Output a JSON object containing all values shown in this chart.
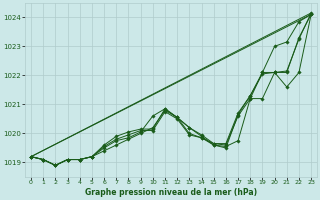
{
  "title": "Graphe pression niveau de la mer (hPa)",
  "background_color": "#cce8e8",
  "grid_color": "#b0cccc",
  "line_color": "#1a5c1a",
  "x_ticks": [
    0,
    1,
    2,
    3,
    4,
    5,
    6,
    7,
    8,
    9,
    10,
    11,
    12,
    13,
    14,
    15,
    16,
    17,
    18,
    19,
    20,
    21,
    22,
    23
  ],
  "ylim": [
    1018.5,
    1024.5
  ],
  "y_ticks": [
    1019,
    1020,
    1021,
    1022,
    1023,
    1024
  ],
  "series": [
    [
      1019.2,
      1019.1,
      1018.9,
      1019.1,
      1019.1,
      1019.2,
      1019.4,
      1019.6,
      1019.8,
      1020.0,
      1020.2,
      1020.8,
      1020.55,
      1020.2,
      1019.9,
      1019.6,
      1019.55,
      1019.75,
      1021.2,
      1021.2,
      1022.1,
      1021.6,
      1022.1,
      1024.1
    ],
    [
      1019.2,
      1019.1,
      1018.9,
      1019.1,
      1019.1,
      1019.2,
      1019.5,
      1019.75,
      1019.85,
      1020.05,
      1020.6,
      1020.85,
      1020.55,
      1020.2,
      1019.95,
      1019.65,
      1019.6,
      1020.6,
      1021.2,
      1022.1,
      1023.0,
      1023.15,
      1023.85,
      1024.1
    ],
    [
      1019.2,
      1019.1,
      1018.9,
      1019.1,
      1019.1,
      1019.2,
      1019.55,
      1019.8,
      1019.95,
      1020.1,
      1020.1,
      1020.75,
      1020.5,
      1019.95,
      1019.85,
      1019.6,
      1019.5,
      1020.65,
      1021.3,
      1022.05,
      1022.1,
      1022.1,
      1023.3,
      1024.1
    ],
    [
      1019.2,
      1019.1,
      1018.9,
      1019.1,
      1019.1,
      1019.2,
      1019.6,
      1019.9,
      1020.05,
      1020.15,
      1020.15,
      1020.85,
      1020.55,
      1020.0,
      1019.85,
      1019.65,
      1019.65,
      1020.7,
      1021.3,
      1022.1,
      1022.1,
      1022.15,
      1023.25,
      1024.15
    ]
  ],
  "straight_lines": [
    [
      1019.2,
      1024.1
    ],
    [
      1019.2,
      1024.15
    ]
  ]
}
